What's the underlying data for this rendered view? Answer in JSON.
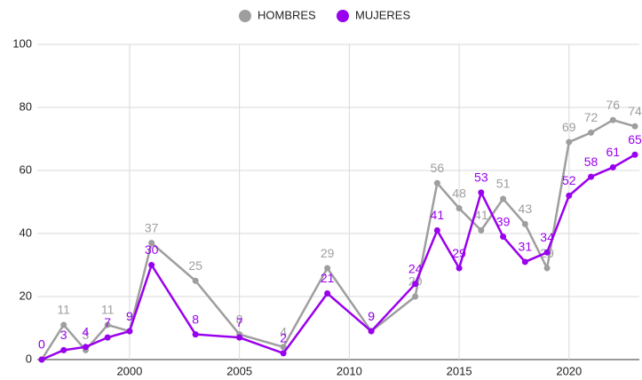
{
  "chart_data": {
    "type": "line",
    "x": [
      1996,
      1997,
      1998,
      1999,
      2000,
      2001,
      2003,
      2005,
      2007,
      2009,
      2011,
      2013,
      2014,
      2015,
      2016,
      2017,
      2018,
      2019,
      2020,
      2021,
      2022,
      2023
    ],
    "series": [
      {
        "name": "HOMBRES",
        "color": "#9e9e9e",
        "values": [
          0,
          11,
          3,
          11,
          9,
          37,
          25,
          8,
          4,
          29,
          9,
          20,
          56,
          48,
          41,
          51,
          43,
          29,
          69,
          72,
          76,
          74
        ]
      },
      {
        "name": "MUJERES",
        "color": "#9900ee",
        "values": [
          0,
          3,
          4,
          7,
          9,
          30,
          8,
          7,
          2,
          21,
          9,
          24,
          41,
          29,
          53,
          39,
          31,
          34,
          52,
          58,
          61,
          65
        ]
      }
    ],
    "xlim": [
      1995.8,
      2023.2
    ],
    "xticks": [
      2000,
      2005,
      2010,
      2015,
      2020
    ],
    "ylim": [
      0,
      100
    ],
    "yticks": [
      0,
      20,
      40,
      60,
      80,
      100
    ],
    "grid": true,
    "legend": "top"
  }
}
